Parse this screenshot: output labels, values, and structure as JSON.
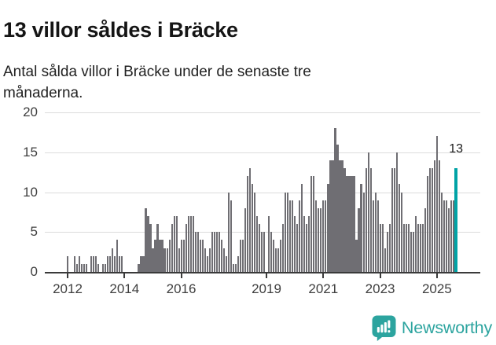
{
  "header": {
    "title": "13 villor såldes i Bräcke",
    "subtitle": "Antal sålda villor i Bräcke under de senaste tre månaderna."
  },
  "chart_data": {
    "type": "bar",
    "title": "13 villor såldes i Bräcke",
    "subtitle": "Antal sålda villor i Bräcke under de senaste tre månaderna.",
    "xlabel": "",
    "ylabel": "",
    "ylim": [
      0,
      20
    ],
    "yticks": [
      0,
      5,
      10,
      15,
      20
    ],
    "grid": true,
    "legend": "none",
    "x_unit": "month",
    "x_start_month": "2012-01",
    "x_end_month": "2025-09",
    "xticks": [
      {
        "label": "2012",
        "month_index": 0
      },
      {
        "label": "2014",
        "month_index": 24
      },
      {
        "label": "2016",
        "month_index": 48
      },
      {
        "label": "2019",
        "month_index": 84
      },
      {
        "label": "2021",
        "month_index": 108
      },
      {
        "label": "2023",
        "month_index": 132
      },
      {
        "label": "2025",
        "month_index": 156
      }
    ],
    "values": [
      2,
      0,
      0,
      2,
      1,
      2,
      1,
      1,
      1,
      0,
      2,
      2,
      2,
      1,
      0,
      1,
      1,
      2,
      2,
      3,
      2,
      4,
      2,
      2,
      0,
      0,
      0,
      0,
      0,
      0,
      1,
      2,
      2,
      8,
      7,
      6,
      3,
      4,
      6,
      4,
      4,
      3,
      3,
      4,
      6,
      7,
      7,
      3,
      4,
      4,
      6,
      7,
      7,
      7,
      5,
      5,
      4,
      4,
      3,
      2,
      3,
      5,
      5,
      5,
      5,
      4,
      3,
      2,
      10,
      9,
      1,
      1,
      2,
      4,
      4,
      8,
      12,
      13,
      11,
      10,
      7,
      6,
      5,
      5,
      0,
      7,
      5,
      4,
      3,
      3,
      4,
      6,
      10,
      10,
      9,
      9,
      7,
      6,
      9,
      11,
      7,
      6,
      7,
      12,
      12,
      9,
      8,
      8,
      9,
      9,
      11,
      14,
      14,
      18,
      16,
      14,
      14,
      13,
      12,
      12,
      12,
      12,
      4,
      8,
      11,
      10,
      13,
      15,
      13,
      9,
      10,
      9,
      6,
      6,
      3,
      5,
      6,
      13,
      13,
      15,
      11,
      10,
      6,
      6,
      6,
      5,
      5,
      7,
      6,
      6,
      6,
      8,
      12,
      13,
      13,
      14,
      17,
      14,
      10,
      9,
      9,
      8,
      9,
      9,
      13
    ],
    "bar_color": "#6f6e73",
    "highlight": {
      "month": "2025-09",
      "month_index": 164,
      "value": 13,
      "label": "13",
      "color": "#00a3a6"
    }
  },
  "footer": {
    "brand": "Newsworthy",
    "brand_color": "#2ca49f",
    "icon": "newsworthy-logo-icon"
  }
}
